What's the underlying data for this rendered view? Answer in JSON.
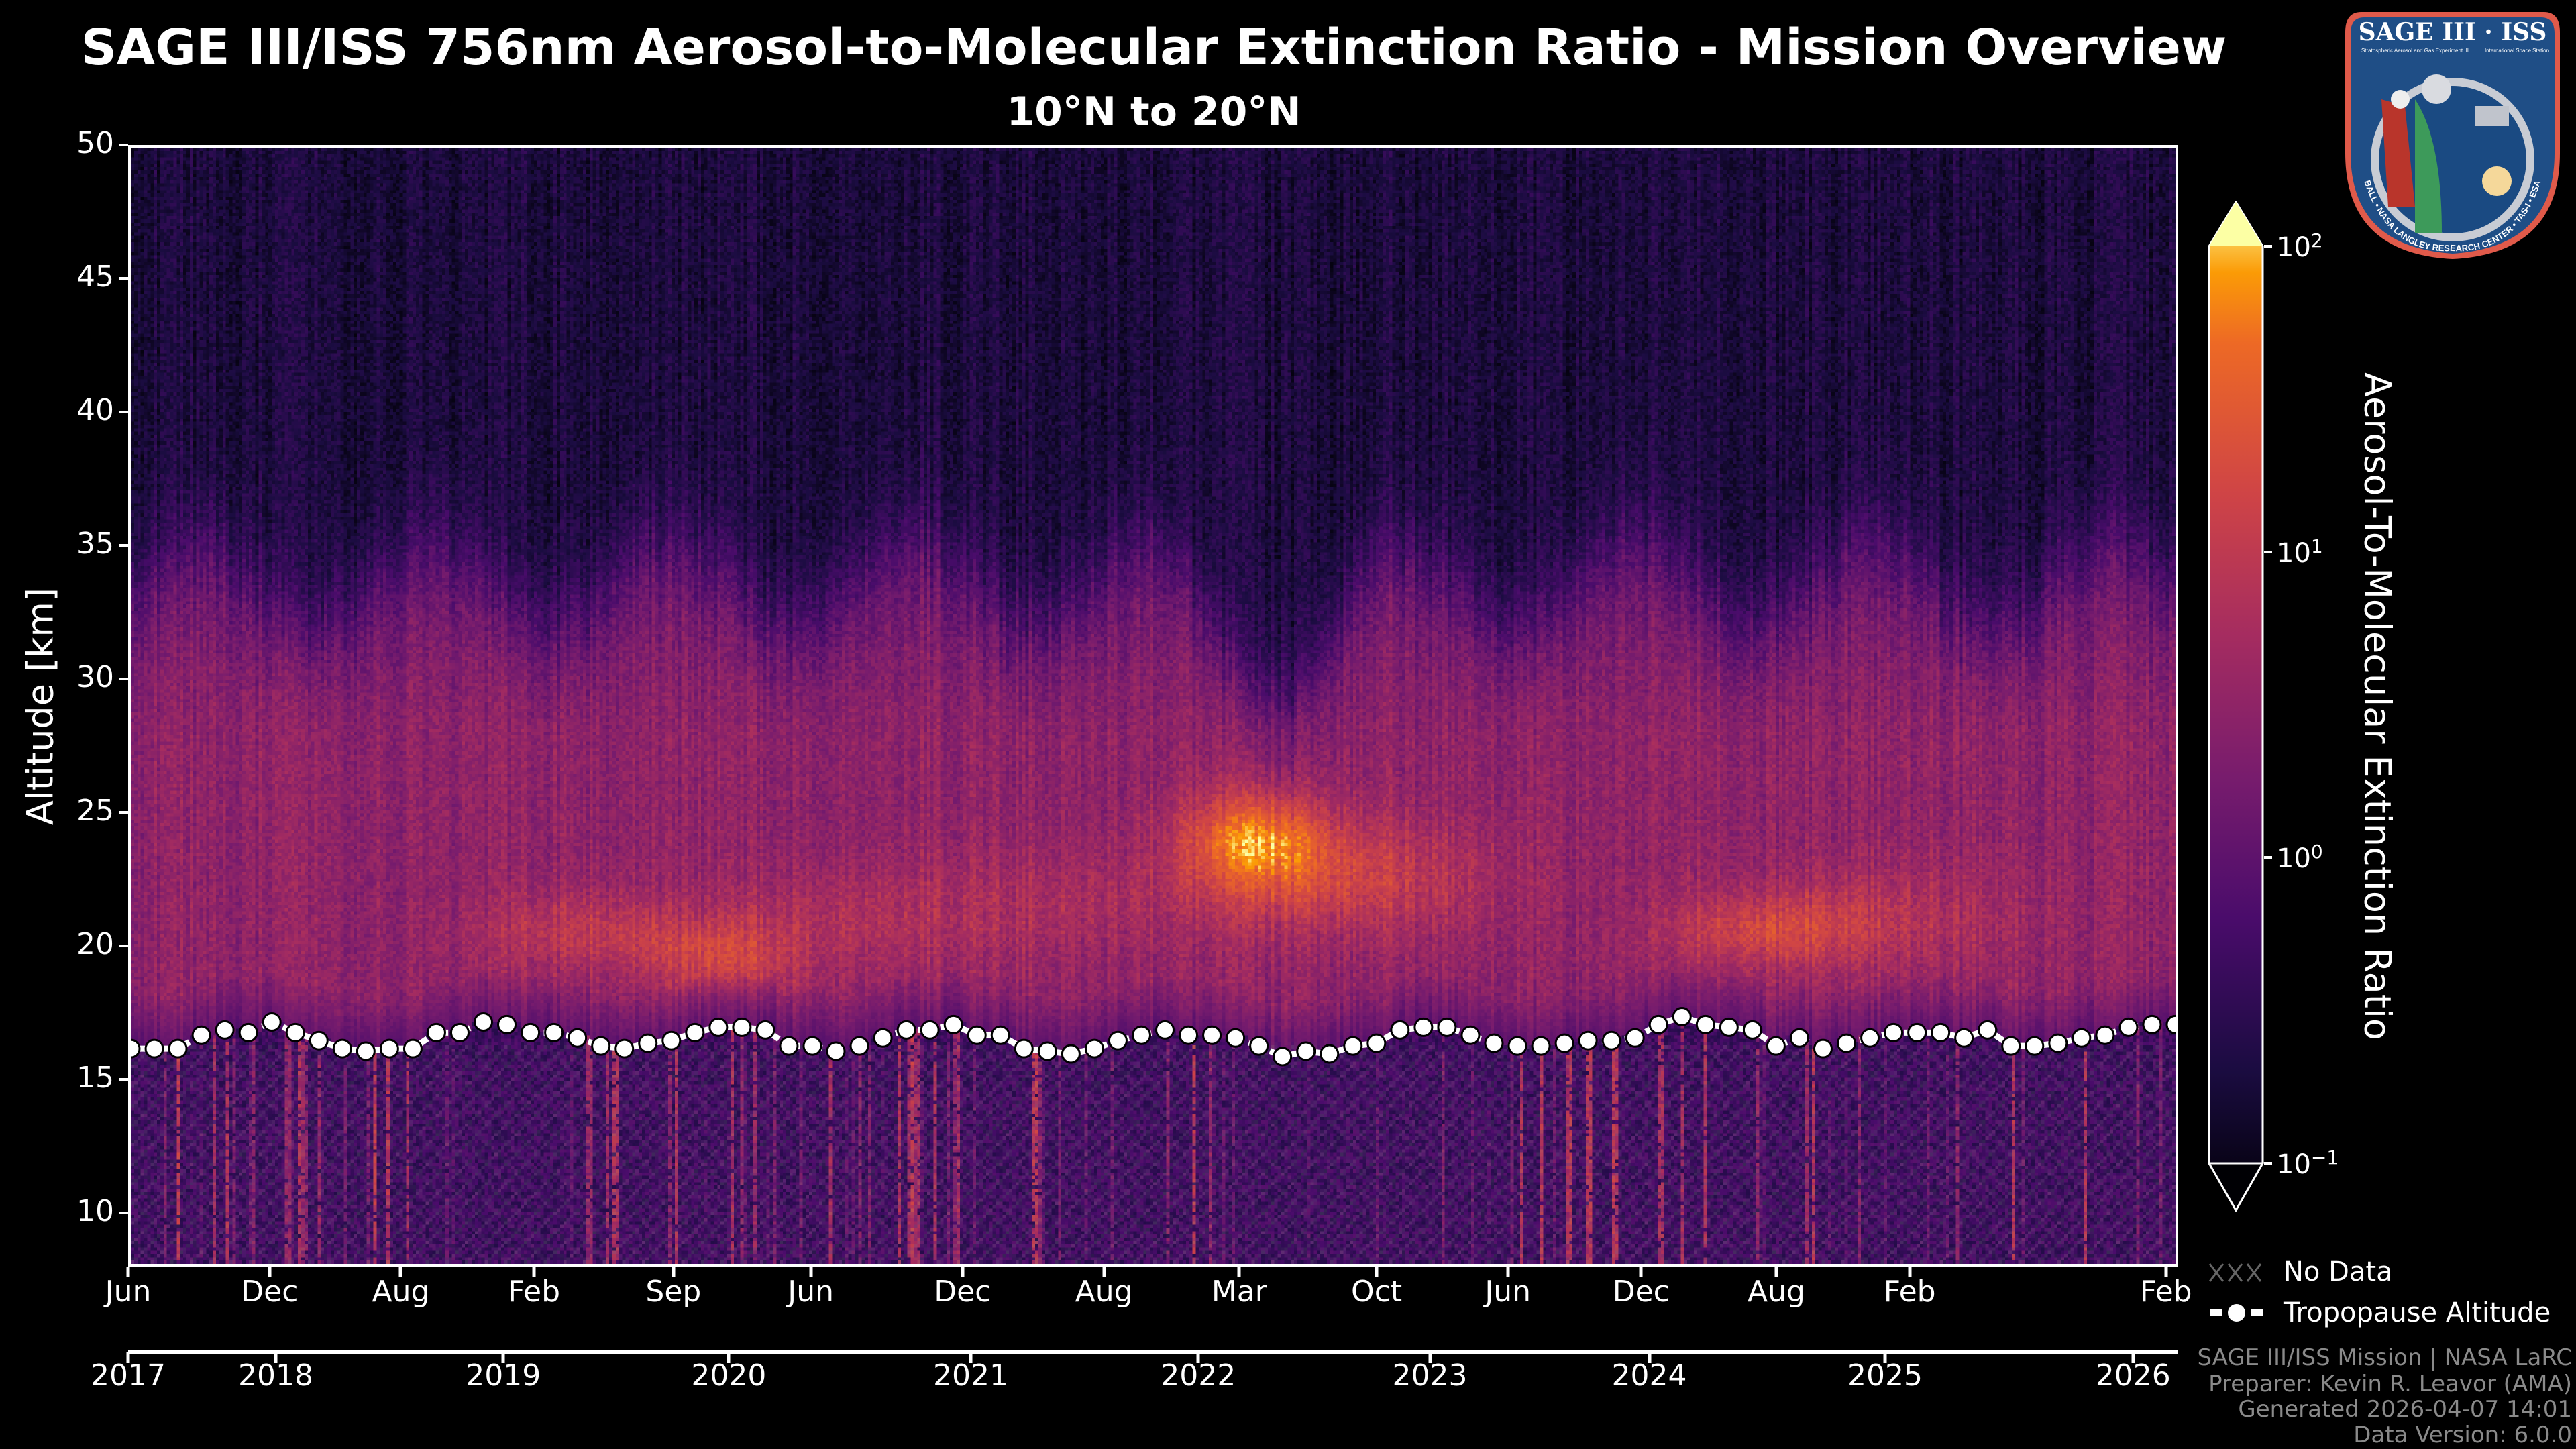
{
  "header": {
    "title": "SAGE III/ISS 756nm Aerosol-to-Molecular Extinction Ratio - Mission Overview",
    "subtitle": "10°N to 20°N"
  },
  "logo": {
    "name": "SAGE III · ISS",
    "line1": "Stratospheric Aerosol and Gas Experiment III",
    "line2": "International Space Station",
    "ring": "BALL • NASA LANGLEY RESEARCH CENTER • TAS-I • ESA"
  },
  "chart_data": {
    "type": "heatmap",
    "title": "SAGE III/ISS 756nm Aerosol-to-Molecular Extinction Ratio - Mission Overview",
    "subtitle": "10°N to 20°N",
    "ylabel": "Altitude [km]",
    "ylim": [
      8,
      50
    ],
    "yticks": [
      "10",
      "15",
      "20",
      "25",
      "30",
      "35",
      "40",
      "45",
      "50"
    ],
    "xticks_month": [
      "Jun",
      "Dec",
      "Aug",
      "Feb",
      "Sep",
      "Jun",
      "Dec",
      "Aug",
      "Mar",
      "Oct",
      "Jun",
      "Dec",
      "Aug",
      "Feb",
      "Feb"
    ],
    "xticks_year": [
      "2017",
      "2018",
      "2019",
      "2020",
      "2021",
      "2022",
      "2023",
      "2024",
      "2025",
      "2026"
    ],
    "colorbar": {
      "label": "Aerosol-To-Molecular Extinction Ratio",
      "scale": "log",
      "range": [
        0.1,
        100
      ],
      "colormap": "inferno",
      "ticks": [
        {
          "base": "10",
          "exp": "2"
        },
        {
          "base": "10",
          "exp": "1"
        },
        {
          "base": "10",
          "exp": "0"
        },
        {
          "base": "10",
          "exp": "−1"
        }
      ],
      "extend": "both"
    },
    "features": [
      {
        "period": "2019 mid-late",
        "altitude_km": 20.5,
        "ratio_peak": 5
      },
      {
        "period": "2020",
        "altitude_km": 19.5,
        "ratio_peak": 8
      },
      {
        "period": "2022 Mar-Jun",
        "altitude_km": 24,
        "ratio_peak": 40
      },
      {
        "period": "2024 Aug",
        "altitude_km": 20.5,
        "ratio_peak": 8
      }
    ],
    "tropopause_altitude_km": [
      16.1,
      16.1,
      16.1,
      16.6,
      16.8,
      16.7,
      17.1,
      16.7,
      16.4,
      16.1,
      16.0,
      16.1,
      16.1,
      16.7,
      16.7,
      17.1,
      17.0,
      16.7,
      16.7,
      16.5,
      16.2,
      16.1,
      16.3,
      16.4,
      16.7,
      16.9,
      16.9,
      16.8,
      16.2,
      16.2,
      16.0,
      16.2,
      16.5,
      16.8,
      16.8,
      17.0,
      16.6,
      16.6,
      16.1,
      16.0,
      15.9,
      16.1,
      16.4,
      16.6,
      16.8,
      16.6,
      16.6,
      16.5,
      16.2,
      15.8,
      16.0,
      15.9,
      16.2,
      16.3,
      16.8,
      16.9,
      16.9,
      16.6,
      16.3,
      16.2,
      16.2,
      16.3,
      16.4,
      16.4,
      16.5,
      17.0,
      17.3,
      17.0,
      16.9,
      16.8,
      16.2,
      16.5,
      16.1,
      16.3,
      16.5,
      16.7,
      16.7,
      16.7,
      16.5,
      16.8,
      16.2,
      16.2,
      16.3,
      16.5,
      16.6,
      16.9,
      17.0,
      17.0
    ],
    "legend": [
      {
        "label": "No Data",
        "style": "hatch"
      },
      {
        "label": "Tropopause Altitude",
        "style": "dashed-line-markers"
      }
    ],
    "legend_placement": "bottom-right outside"
  },
  "footer": {
    "line1": "SAGE III/ISS Mission | NASA LaRC",
    "line2": "Preparer: Kevin R. Leavor (AMA)",
    "line3": "Generated 2026-04-07 14:01",
    "line4": "Data Version: 6.0.0"
  }
}
